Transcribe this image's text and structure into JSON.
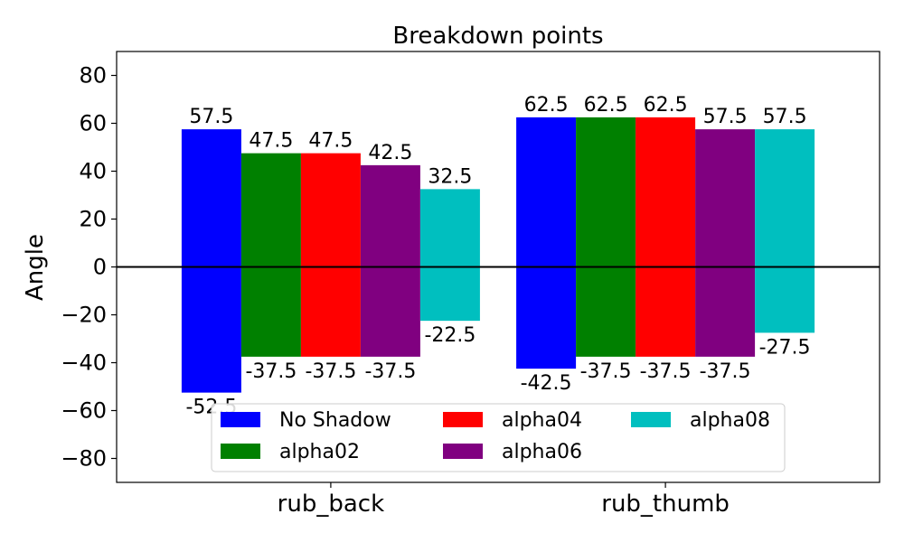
{
  "chart_data": {
    "type": "bar",
    "title": "Breakdown points",
    "xlabel": "",
    "ylabel": "Angle",
    "ylim": [
      -90,
      90
    ],
    "yticks": [
      -80,
      -60,
      -40,
      -20,
      0,
      20,
      40,
      60,
      80
    ],
    "ytick_labels": [
      "−80",
      "−60",
      "−40",
      "−20",
      "0",
      "20",
      "40",
      "60",
      "80"
    ],
    "categories": [
      "rub_back",
      "rub_thumb"
    ],
    "series": [
      {
        "name": "No Shadow",
        "color": "#0000ff",
        "positive": [
          57.5,
          62.5
        ],
        "negative": [
          -52.5,
          -42.5
        ],
        "positive_labels": [
          "57.5",
          "62.5"
        ],
        "negative_labels": [
          "-52.5",
          "-42.5"
        ]
      },
      {
        "name": "alpha02",
        "color": "#008000",
        "positive": [
          47.5,
          62.5
        ],
        "negative": [
          -37.5,
          -37.5
        ],
        "positive_labels": [
          "47.5",
          "62.5"
        ],
        "negative_labels": [
          "-37.5",
          "-37.5"
        ]
      },
      {
        "name": "alpha04",
        "color": "#ff0000",
        "positive": [
          47.5,
          62.5
        ],
        "negative": [
          -37.5,
          -37.5
        ],
        "positive_labels": [
          "47.5",
          "62.5"
        ],
        "negative_labels": [
          "-37.5",
          "-37.5"
        ]
      },
      {
        "name": "alpha06",
        "color": "#800080",
        "positive": [
          42.5,
          57.5
        ],
        "negative": [
          -37.5,
          -37.5
        ],
        "positive_labels": [
          "42.5",
          "57.5"
        ],
        "negative_labels": [
          "-37.5",
          "-37.5"
        ]
      },
      {
        "name": "alpha08",
        "color": "#00bfbf",
        "positive": [
          32.5,
          57.5
        ],
        "negative": [
          -22.5,
          -27.5
        ],
        "positive_labels": [
          "32.5",
          "57.5"
        ],
        "negative_labels": [
          "-22.5",
          "-27.5"
        ]
      }
    ],
    "zero_line": true,
    "grid": false,
    "legend_position": "lower center",
    "legend_columns": 3
  }
}
